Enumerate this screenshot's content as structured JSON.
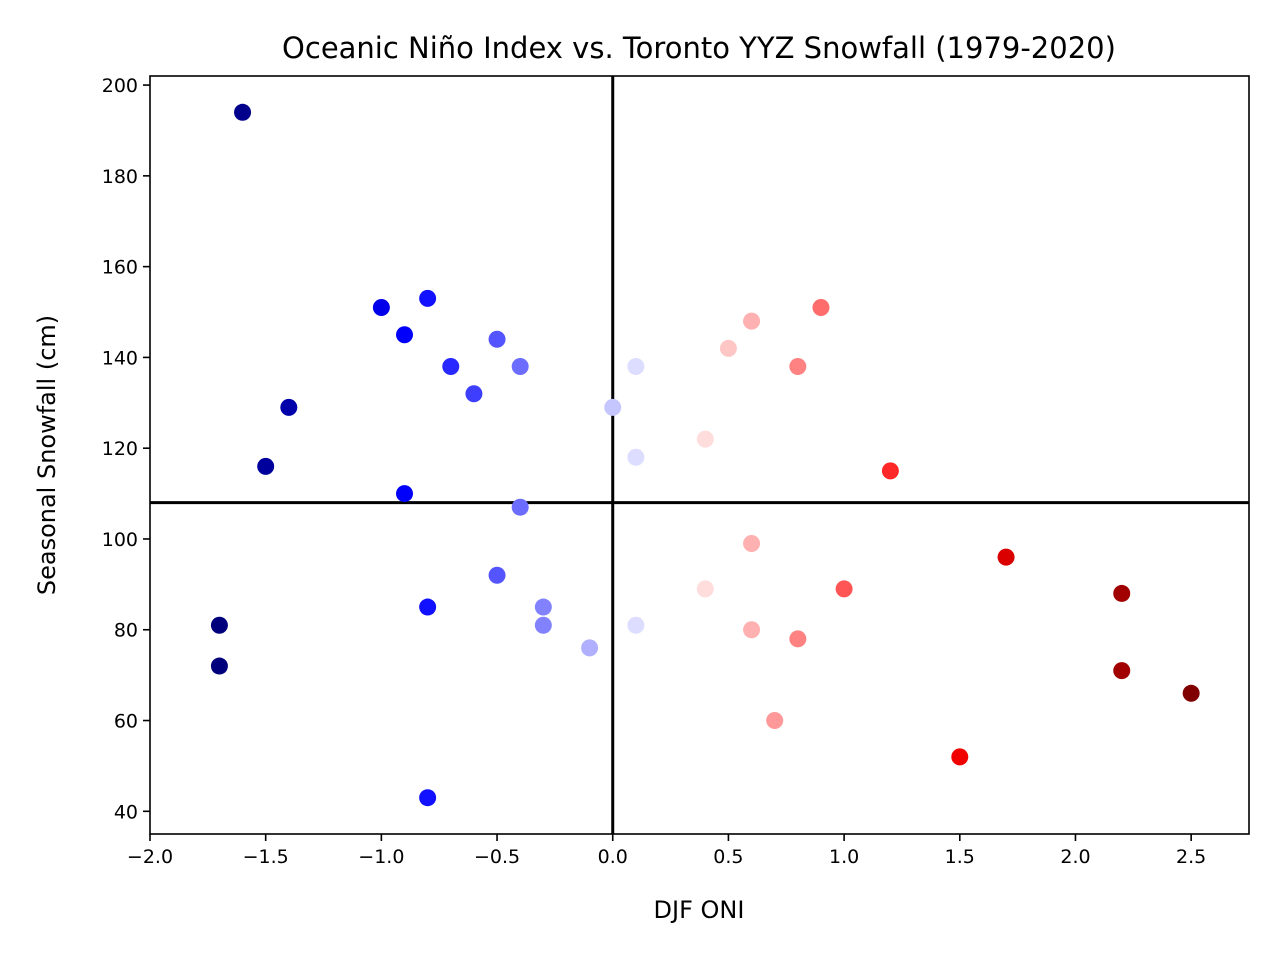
{
  "chart_data": {
    "type": "scatter",
    "title": "Oceanic Niño Index vs. Toronto YYZ Snowfall (1979-2020)",
    "xlabel": "DJF ONI",
    "ylabel": "Seasonal Snowfall (cm)",
    "xlim": [
      -2.0,
      2.75
    ],
    "ylim": [
      35,
      202
    ],
    "xticks": [
      -2.0,
      -1.5,
      -1.0,
      -0.5,
      0.0,
      0.5,
      1.0,
      1.5,
      2.0,
      2.5
    ],
    "xtick_labels": [
      "−2.0",
      "−1.5",
      "−1.0",
      "−0.5",
      "0.0",
      "0.5",
      "1.0",
      "1.5",
      "2.0",
      "2.5"
    ],
    "yticks": [
      40,
      60,
      80,
      100,
      120,
      140,
      160,
      180,
      200
    ],
    "ytick_labels": [
      "40",
      "60",
      "80",
      "100",
      "120",
      "140",
      "160",
      "180",
      "200"
    ],
    "reference_lines": {
      "vertical_x": 0.0,
      "horizontal_y": 108
    },
    "grid": false,
    "colormap": "seismic",
    "color_range": [
      -2.0,
      2.5
    ],
    "points": [
      {
        "x": -1.6,
        "y": 194
      },
      {
        "x": -1.7,
        "y": 81
      },
      {
        "x": -1.7,
        "y": 72
      },
      {
        "x": -1.5,
        "y": 116
      },
      {
        "x": -1.4,
        "y": 129
      },
      {
        "x": -1.0,
        "y": 151
      },
      {
        "x": -0.9,
        "y": 145
      },
      {
        "x": -0.9,
        "y": 110
      },
      {
        "x": -0.8,
        "y": 153
      },
      {
        "x": -0.8,
        "y": 85
      },
      {
        "x": -0.8,
        "y": 43
      },
      {
        "x": -0.7,
        "y": 138
      },
      {
        "x": -0.6,
        "y": 132
      },
      {
        "x": -0.5,
        "y": 144
      },
      {
        "x": -0.5,
        "y": 92
      },
      {
        "x": -0.4,
        "y": 138
      },
      {
        "x": -0.4,
        "y": 107
      },
      {
        "x": -0.3,
        "y": 85
      },
      {
        "x": -0.3,
        "y": 81
      },
      {
        "x": -0.1,
        "y": 76
      },
      {
        "x": 0.0,
        "y": 129
      },
      {
        "x": 0.1,
        "y": 138
      },
      {
        "x": 0.1,
        "y": 118
      },
      {
        "x": 0.1,
        "y": 81
      },
      {
        "x": 0.4,
        "y": 122
      },
      {
        "x": 0.4,
        "y": 89
      },
      {
        "x": 0.5,
        "y": 142
      },
      {
        "x": 0.6,
        "y": 148
      },
      {
        "x": 0.6,
        "y": 99
      },
      {
        "x": 0.6,
        "y": 80
      },
      {
        "x": 0.7,
        "y": 60
      },
      {
        "x": 0.8,
        "y": 138
      },
      {
        "x": 0.8,
        "y": 78
      },
      {
        "x": 0.9,
        "y": 151
      },
      {
        "x": 1.0,
        "y": 89
      },
      {
        "x": 1.2,
        "y": 115
      },
      {
        "x": 1.5,
        "y": 52
      },
      {
        "x": 1.7,
        "y": 96
      },
      {
        "x": 2.2,
        "y": 88
      },
      {
        "x": 2.2,
        "y": 71
      },
      {
        "x": 2.5,
        "y": 66
      }
    ]
  }
}
